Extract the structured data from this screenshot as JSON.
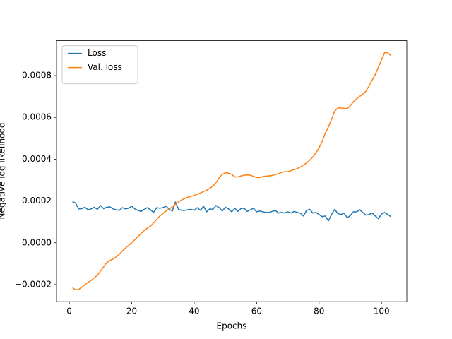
{
  "chart_data": {
    "type": "line",
    "xlabel": "Epochs",
    "ylabel": "Negative log likelihood",
    "x": [
      1,
      2,
      3,
      4,
      5,
      6,
      7,
      8,
      9,
      10,
      11,
      12,
      13,
      14,
      15,
      16,
      17,
      18,
      19,
      20,
      21,
      22,
      23,
      24,
      25,
      26,
      27,
      28,
      29,
      30,
      31,
      32,
      33,
      34,
      35,
      36,
      37,
      38,
      39,
      40,
      41,
      42,
      43,
      44,
      45,
      46,
      47,
      48,
      49,
      50,
      51,
      52,
      53,
      54,
      55,
      56,
      57,
      58,
      59,
      60,
      61,
      62,
      63,
      64,
      65,
      66,
      67,
      68,
      69,
      70,
      71,
      72,
      73,
      74,
      75,
      76,
      77,
      78,
      79,
      80,
      81,
      82,
      83,
      84,
      85,
      86,
      87,
      88,
      89,
      90,
      91,
      92,
      93,
      94,
      95,
      96,
      97,
      98,
      99,
      100,
      101,
      102,
      103
    ],
    "series": [
      {
        "name": "Loss",
        "color": "#1f77b4",
        "values": [
          0.000197,
          0.00019,
          0.000162,
          0.000163,
          0.00017,
          0.000158,
          0.000162,
          0.00017,
          0.00016,
          0.000178,
          0.000163,
          0.00017,
          0.000172,
          0.000162,
          0.000158,
          0.000155,
          0.000168,
          0.000162,
          0.000165,
          0.000175,
          0.000162,
          0.000155,
          0.00015,
          0.00016,
          0.000168,
          0.000158,
          0.000145,
          0.000168,
          0.000165,
          0.000168,
          0.000175,
          0.00016,
          0.000152,
          0.000195,
          0.00016,
          0.000155,
          0.000155,
          0.000158,
          0.00016,
          0.000155,
          0.000168,
          0.000155,
          0.000175,
          0.000148,
          0.000162,
          0.00016,
          0.000178,
          0.000168,
          0.000152,
          0.00017,
          0.000162,
          0.000148,
          0.000165,
          0.00015,
          0.000164,
          0.000165,
          0.00015,
          0.000158,
          0.000165,
          0.000148,
          0.000152,
          0.000148,
          0.000145,
          0.000145,
          0.00015,
          0.000155,
          0.000142,
          0.000145,
          0.000142,
          0.000148,
          0.000142,
          0.00015,
          0.000145,
          0.000142,
          0.000128,
          0.000155,
          0.00016,
          0.000142,
          0.000145,
          0.000135,
          0.000125,
          0.000128,
          0.000105,
          0.000135,
          0.00016,
          0.00014,
          0.000135,
          0.000142,
          0.00012,
          0.00013,
          0.000148,
          0.000148,
          0.000158,
          0.000145,
          0.000132,
          0.000135,
          0.000142,
          0.000128,
          0.000115,
          0.000138,
          0.000145,
          0.000135,
          0.000125
        ]
      },
      {
        "name": "Val. loss",
        "color": "#ff7f0e",
        "values": [
          -0.000215,
          -0.000225,
          -0.000224,
          -0.000212,
          -0.0002,
          -0.00019,
          -0.00018,
          -0.000168,
          -0.000155,
          -0.000135,
          -0.000115,
          -9.5e-05,
          -8.5e-05,
          -7.8e-05,
          -6.8e-05,
          -5.5e-05,
          -4e-05,
          -2.5e-05,
          -1.3e-05,
          0.0,
          1.5e-05,
          3e-05,
          4.5e-05,
          5.8e-05,
          7e-05,
          8e-05,
          9.5e-05,
          0.000112,
          0.000128,
          0.00014,
          0.000152,
          0.000162,
          0.000172,
          0.000185,
          0.000195,
          0.000205,
          0.000212,
          0.000218,
          0.000222,
          0.000227,
          0.000232,
          0.000238,
          0.000245,
          0.000252,
          0.00026,
          0.000272,
          0.000288,
          0.00031,
          0.000328,
          0.000335,
          0.000333,
          0.000328,
          0.000315,
          0.000315,
          0.00032,
          0.000323,
          0.000325,
          0.000323,
          0.000318,
          0.000312,
          0.000312,
          0.000317,
          0.000319,
          0.00032,
          0.000322,
          0.000327,
          0.00033,
          0.000337,
          0.00034,
          0.00034,
          0.000345,
          0.00035,
          0.000355,
          0.000362,
          0.000372,
          0.000382,
          0.000395,
          0.00041,
          0.00043,
          0.000455,
          0.000485,
          0.000525,
          0.000555,
          0.00059,
          0.00063,
          0.000645,
          0.000645,
          0.000643,
          0.000642,
          0.000655,
          0.000675,
          0.000688,
          0.0007,
          0.000712,
          0.000725,
          0.00075,
          0.000778,
          0.000805,
          0.00084,
          0.000875,
          0.00091,
          0.00091,
          0.000895
        ]
      }
    ],
    "xlim": [
      -4.1,
      108.1
    ],
    "ylim": [
      -0.000282,
      0.000967
    ],
    "xticks": [
      0,
      20,
      40,
      60,
      80,
      100
    ],
    "yticks": [
      {
        "value": -0.0002,
        "label": "−0.0002"
      },
      {
        "value": 0,
        "label": "0.0000"
      },
      {
        "value": 0.0002,
        "label": "0.0002"
      },
      {
        "value": 0.0004,
        "label": "0.0004"
      },
      {
        "value": 0.0006,
        "label": "0.0006"
      },
      {
        "value": 0.0008,
        "label": "0.0008"
      }
    ],
    "legend": "upper left",
    "grid": false
  }
}
